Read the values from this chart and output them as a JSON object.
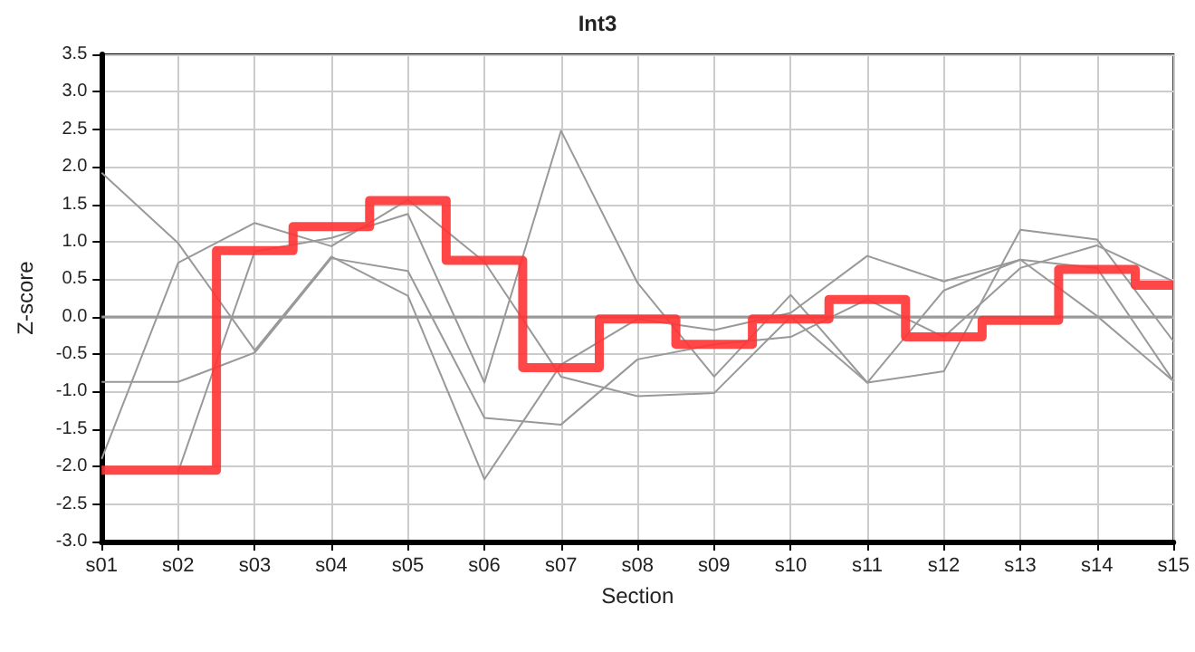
{
  "chart_data": {
    "type": "line",
    "title": "Int3",
    "xlabel": "Section",
    "ylabel": "Z-score",
    "categories": [
      "s01",
      "s02",
      "s03",
      "s04",
      "s05",
      "s06",
      "s07",
      "s08",
      "s09",
      "s10",
      "s11",
      "s12",
      "s13",
      "s14",
      "s15"
    ],
    "series": [
      {
        "type": "line",
        "color": "#999999",
        "values": [
          1.92,
          0.98,
          -0.45,
          0.8,
          0.28,
          -2.17,
          -0.64,
          -0.03,
          -0.18,
          0.05,
          0.81,
          0.47,
          0.76,
          0.01,
          -0.86
        ]
      },
      {
        "type": "line",
        "color": "#999999",
        "values": [
          -0.87,
          -0.87,
          -0.48,
          0.78,
          0.61,
          -1.35,
          -1.44,
          -0.57,
          -0.37,
          -0.27,
          0.23,
          -0.27,
          0.65,
          0.95,
          0.47
        ]
      },
      {
        "type": "line",
        "color": "#999999",
        "values": [
          -1.9,
          0.72,
          1.25,
          0.94,
          1.56,
          0.73,
          -0.8,
          -1.06,
          -1.02,
          0.0,
          -0.88,
          0.35,
          0.76,
          0.65,
          -0.86
        ]
      },
      {
        "type": "line",
        "color": "#999999",
        "values": [
          null,
          -2.07,
          0.87,
          1.05,
          1.37,
          -0.88,
          2.48,
          0.45,
          -0.8,
          0.29,
          -0.88,
          -0.73,
          1.16,
          1.03,
          -0.33
        ]
      },
      {
        "type": "step",
        "color": "#ff3333",
        "values": [
          -2.05,
          -2.05,
          0.88,
          1.2,
          1.55,
          0.75,
          -0.68,
          -0.03,
          -0.37,
          -0.03,
          0.23,
          -0.27,
          -0.05,
          0.63,
          0.42
        ]
      }
    ],
    "ylim": [
      -3,
      3.5
    ],
    "yticks": [
      {
        "value": -3,
        "label": "-3.0"
      },
      -2.5,
      {
        "value": -2,
        "label": "-2.0"
      },
      -1.5,
      {
        "value": -1,
        "label": "-1.0"
      },
      -0.5,
      {
        "value": 0,
        "label": "0.0"
      },
      0.5,
      {
        "value": 1,
        "label": "1.0"
      },
      1.5,
      {
        "value": 2,
        "label": "2.0"
      },
      2.5,
      {
        "value": 3,
        "label": "3.0"
      },
      3.5
    ],
    "ref_lines": [
      {
        "axis": "y",
        "value": 0,
        "color": "#999999"
      }
    ],
    "grid": true,
    "marker": "none"
  }
}
